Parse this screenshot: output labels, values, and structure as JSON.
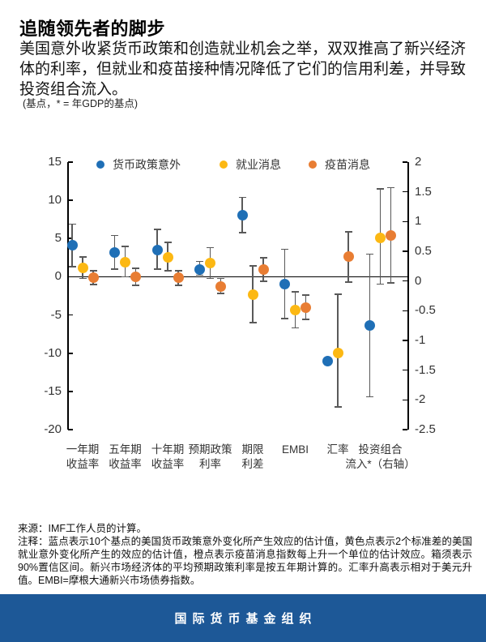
{
  "header": {
    "title": "追随领先者的脚步",
    "subtitle": "美国意外收紧货币政策和创造就业机会之举，双双推高了新兴经济体的利率，但就业和疫苗接种情况降低了它们的信用利差，并导致投资组合流入。",
    "unit_note": "(基点，* = 年GDP的基点)"
  },
  "chart_data": {
    "type": "scatter",
    "subtype": "dot-with-90pct-confidence-whiskers",
    "grid": false,
    "legend_position": "top",
    "categories": [
      [
        "一年期",
        "收益率"
      ],
      [
        "五年期",
        "收益率"
      ],
      [
        "十年期",
        "收益率"
      ],
      [
        "预期政策",
        "利率"
      ],
      [
        "期限",
        "利差"
      ],
      [
        "EMBI",
        ""
      ],
      [
        "汇率",
        ""
      ],
      [
        "投资组合",
        "流入*（右轴）"
      ]
    ],
    "right_axis_category_indexes": [
      7
    ],
    "series": [
      {
        "name": "货币政策意外",
        "color": "#1f6fb6",
        "values": [
          4.1,
          3.2,
          3.5,
          1.0,
          8.1,
          -1.0,
          -11.0,
          -0.75
        ],
        "ci": [
          [
            1.3,
            6.9
          ],
          [
            1.0,
            5.4
          ],
          [
            1.0,
            6.2
          ],
          [
            0.2,
            2.0
          ],
          [
            5.8,
            10.4
          ],
          [
            -5.5,
            3.6
          ],
          null,
          [
            -1.95,
            0.45
          ]
        ]
      },
      {
        "name": "就业消息",
        "color": "#fcb813",
        "values": [
          1.2,
          1.9,
          2.5,
          1.8,
          -2.3,
          -4.4,
          -10.0,
          0.73
        ],
        "ci": [
          [
            -0.2,
            2.6
          ],
          [
            0.0,
            4.0
          ],
          [
            0.8,
            4.5
          ],
          [
            -0.2,
            3.8
          ],
          [
            -6.0,
            1.4
          ],
          [
            -6.7,
            -2.0
          ],
          [
            -17.0,
            -2.3
          ],
          [
            -0.05,
            1.55
          ]
        ]
      },
      {
        "name": "疫苗消息",
        "color": "#e87d33",
        "values": [
          -0.1,
          0.0,
          -0.1,
          -1.3,
          1.0,
          -4.0,
          2.6,
          0.77
        ],
        "ci": [
          [
            -1.0,
            0.8
          ],
          [
            -1.1,
            1.1
          ],
          [
            -1.1,
            0.8
          ],
          [
            -2.2,
            -0.2
          ],
          [
            -0.6,
            2.5
          ],
          [
            -5.6,
            -2.4
          ],
          [
            -0.7,
            5.9
          ],
          [
            -0.03,
            1.57
          ]
        ]
      }
    ],
    "left_axis": {
      "range": [
        15,
        -20
      ],
      "ticks": [
        15,
        10,
        5,
        0,
        -5,
        -10,
        -15,
        -20
      ]
    },
    "right_axis": {
      "range": [
        2,
        -2.5
      ],
      "ticks": [
        2,
        1.5,
        1,
        0.5,
        0,
        -0.5,
        -1,
        -1.5,
        -2,
        -2.5
      ]
    },
    "error_bar_color": "#595959",
    "axis_color": "#000000"
  },
  "notes": {
    "source": "来源：IMF工作人员的计算。",
    "note": "注释：蓝点表示10个基点的美国货币政策意外变化所产生效应的估计值，黄色点表示2个标准差的美国就业意外变化所产生的效应的估计值，橙点表示疫苗消息指数每上升一个单位的估计效应。箱须表示90%置信区间。新兴市场经济体的平均预期政策利率是按五年期计算的。汇率升高表示相对于美元升值。EMBI=摩根大通新兴市场债券指数。"
  },
  "footer": {
    "label": "国际货币基金组织",
    "bg_color": "#1d5897"
  }
}
